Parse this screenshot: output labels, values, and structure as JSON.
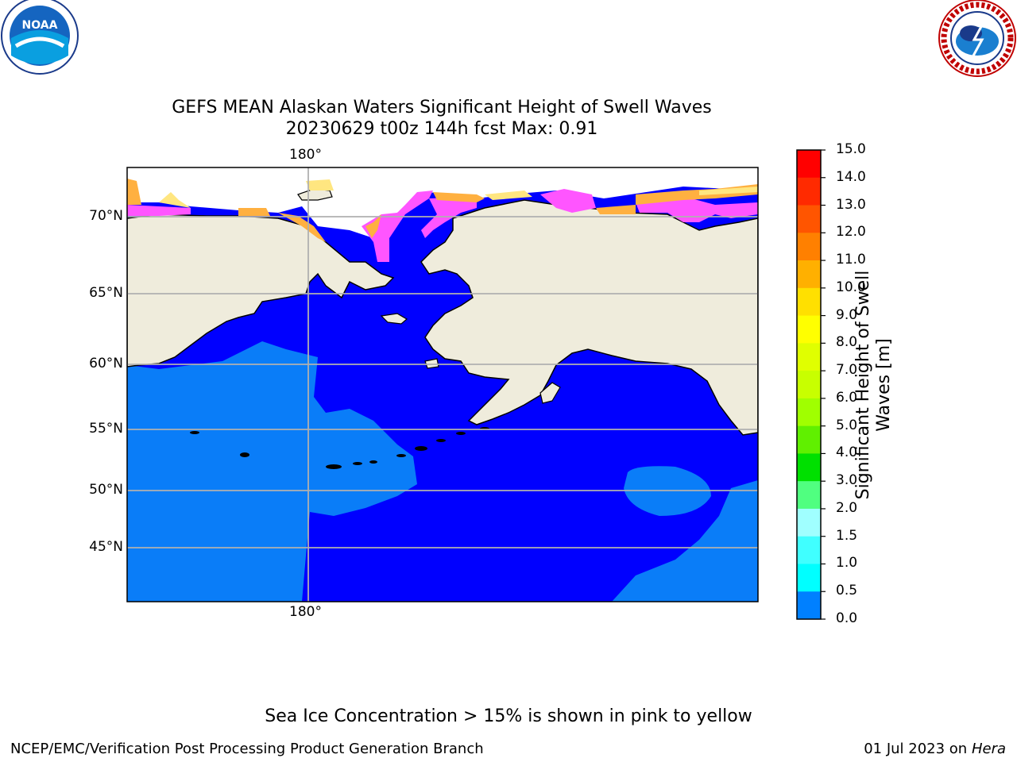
{
  "header": {
    "title_line1": "GEFS MEAN Alaskan Waters Significant Height of Swell Waves",
    "title_line2": "20230629 t00z 144h fcst   Max: 0.91",
    "logo_left_text": "NOAA",
    "logo_right_text": "NATIONAL WEATHER SERVICE"
  },
  "map": {
    "lon_label_top": "180°",
    "lon_label_bottom": "180°",
    "lat_labels": [
      "70°N",
      "65°N",
      "60°N",
      "55°N",
      "50°N",
      "45°N"
    ],
    "colors": {
      "land": "#efecdc",
      "ocean_low": "#0000ff",
      "ocean_mid": "#0a7df8",
      "ice_pink": "#ff55ff",
      "ice_orange": "#ffb040",
      "ice_yellow": "#ffe680",
      "grid": "#b0b0b0"
    }
  },
  "colorbar": {
    "title": "Significant Height of Swell Waves [m]",
    "title_line1": "Significant Height of Swell",
    "title_line2": "Waves [m]",
    "ticks": [
      "15.0",
      "14.0",
      "13.0",
      "12.0",
      "11.0",
      "10.0",
      "9.0",
      "8.0",
      "7.0",
      "6.0",
      "5.0",
      "4.0",
      "3.0",
      "2.0",
      "1.5",
      "1.0",
      "0.5",
      "0.0"
    ],
    "colors": [
      "#ff0000",
      "#ff2a00",
      "#ff5500",
      "#ff8000",
      "#ffb000",
      "#ffe000",
      "#ffff00",
      "#e0ff00",
      "#c8ff00",
      "#a0ff00",
      "#60f000",
      "#00e000",
      "#50ff80",
      "#a0ffff",
      "#40ffff",
      "#00ffff",
      "#0080ff",
      "#0000ff"
    ]
  },
  "footer": {
    "note": "Sea Ice Concentration > 15% is shown in pink to yellow",
    "left": "NCEP/EMC/Verification Post Processing Product Generation Branch",
    "date": "01 Jul 2023 on",
    "machine": "Hera"
  }
}
